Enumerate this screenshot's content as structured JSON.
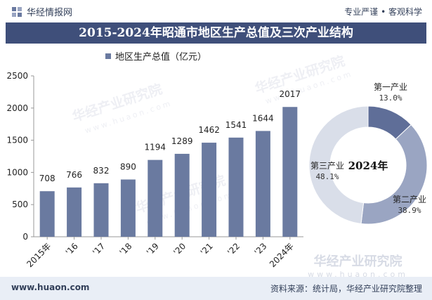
{
  "header": {
    "brand_name": "华经情报网",
    "tagline": "专业严谨 • 客观科学"
  },
  "title": "2015-2024年昭通市地区生产总值及三次产业结构",
  "footer": {
    "url": "www.huaon.com",
    "source": "资料来源：统计局，华经产业研究院整理"
  },
  "watermark": {
    "name": "华经产业研究院",
    "site": "www.huaon.com"
  },
  "colors": {
    "bar": "#6a7aa0",
    "title_bg": "#3f4f7a",
    "pie_primary": "#5f6e98",
    "pie_secondary": "#9aa5c2",
    "pie_tertiary": "#d9dee9"
  },
  "chart_data": [
    {
      "type": "bar",
      "categories": [
        "2015年",
        "'16",
        "'17",
        "'18",
        "'19",
        "'20",
        "'21",
        "'22",
        "'23",
        "2024年"
      ],
      "series": [
        {
          "name": "地区生产总值（亿元）",
          "values": [
            708,
            766,
            832,
            890,
            1194,
            1289,
            1462,
            1541,
            1644,
            2017
          ]
        }
      ],
      "ylim": [
        0,
        2500
      ],
      "yticks": [
        0,
        500,
        1000,
        1500,
        2000,
        2500
      ],
      "grid": false,
      "legend": "top"
    },
    {
      "type": "pie",
      "center_label": "2024年",
      "slices": [
        {
          "label": "第一产业",
          "value": 13.0,
          "value_label": "13.0%"
        },
        {
          "label": "第二产业",
          "value": 38.9,
          "value_label": "38.9%"
        },
        {
          "label": "第三产业",
          "value": 48.1,
          "value_label": "48.1%"
        }
      ]
    }
  ]
}
